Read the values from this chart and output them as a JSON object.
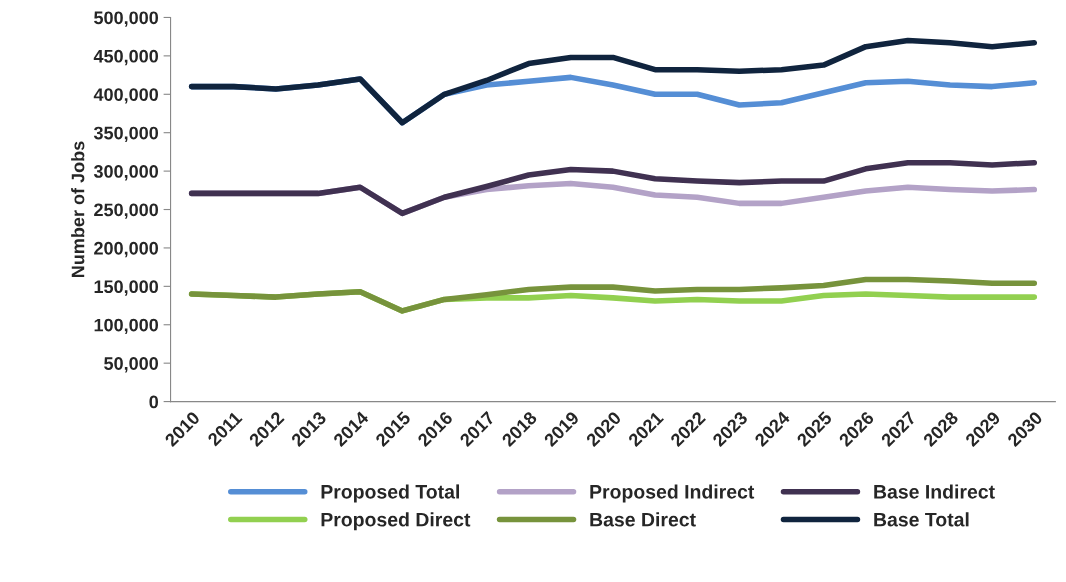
{
  "chart_data": {
    "type": "line",
    "ylabel": "Number of Jobs",
    "categories": [
      "2010",
      "2011",
      "2012",
      "2013",
      "2014",
      "2015",
      "2016",
      "2017",
      "2018",
      "2019",
      "2020",
      "2021",
      "2022",
      "2023",
      "2024",
      "2025",
      "2026",
      "2027",
      "2028",
      "2029",
      "2030"
    ],
    "series": [
      {
        "name": "Proposed Total",
        "color": "#558ed5",
        "values": [
          410000,
          410000,
          407000,
          412000,
          420000,
          363000,
          400000,
          412000,
          417000,
          422000,
          412000,
          400000,
          400000,
          386000,
          389000,
          402000,
          415000,
          417000,
          412000,
          410000,
          415000
        ]
      },
      {
        "name": "Proposed Indirect",
        "color": "#b3a2c7",
        "values": [
          271000,
          271000,
          271000,
          271000,
          279000,
          245000,
          266000,
          276000,
          281000,
          284000,
          279000,
          269000,
          266000,
          258000,
          258000,
          266000,
          274000,
          279000,
          276000,
          274000,
          276000
        ]
      },
      {
        "name": "Base Indirect",
        "color": "#403151",
        "values": [
          271000,
          271000,
          271000,
          271000,
          279000,
          245000,
          266000,
          280000,
          295000,
          302000,
          300000,
          290000,
          287000,
          285000,
          287000,
          287000,
          303000,
          311000,
          311000,
          308000,
          311000
        ]
      },
      {
        "name": "Proposed Direct",
        "color": "#92d050",
        "values": [
          140000,
          138000,
          136000,
          140000,
          143000,
          118000,
          133000,
          135000,
          135000,
          138000,
          135000,
          131000,
          133000,
          131000,
          131000,
          138000,
          140000,
          138000,
          136000,
          136000,
          136000
        ]
      },
      {
        "name": "Base Direct",
        "color": "#77933c",
        "values": [
          140000,
          138000,
          136000,
          140000,
          143000,
          118000,
          133000,
          139000,
          146000,
          149000,
          149000,
          144000,
          146000,
          146000,
          148000,
          151000,
          159000,
          159000,
          157000,
          154000,
          154000
        ]
      },
      {
        "name": "Base Total",
        "color": "#10243e",
        "values": [
          410000,
          410000,
          407000,
          412000,
          420000,
          363000,
          400000,
          418000,
          440000,
          448000,
          448000,
          432000,
          432000,
          430000,
          432000,
          438000,
          462000,
          470000,
          467000,
          462000,
          467000
        ]
      }
    ],
    "ylim": [
      0,
      500000
    ],
    "yticks": [
      {
        "value": 0,
        "label": "0"
      },
      {
        "value": 50000,
        "label": "50,000"
      },
      {
        "value": 100000,
        "label": "100,000"
      },
      {
        "value": 150000,
        "label": "150,000"
      },
      {
        "value": 200000,
        "label": "200,000"
      },
      {
        "value": 250000,
        "label": "250,000"
      },
      {
        "value": 300000,
        "label": "300,000"
      },
      {
        "value": 350000,
        "label": "350,000"
      },
      {
        "value": 400000,
        "label": "400,000"
      },
      {
        "value": 450000,
        "label": "450,000"
      },
      {
        "value": 500000,
        "label": "500,000"
      }
    ],
    "grid": false,
    "legend": "bottom",
    "marker": "none",
    "line_style": "solid"
  }
}
